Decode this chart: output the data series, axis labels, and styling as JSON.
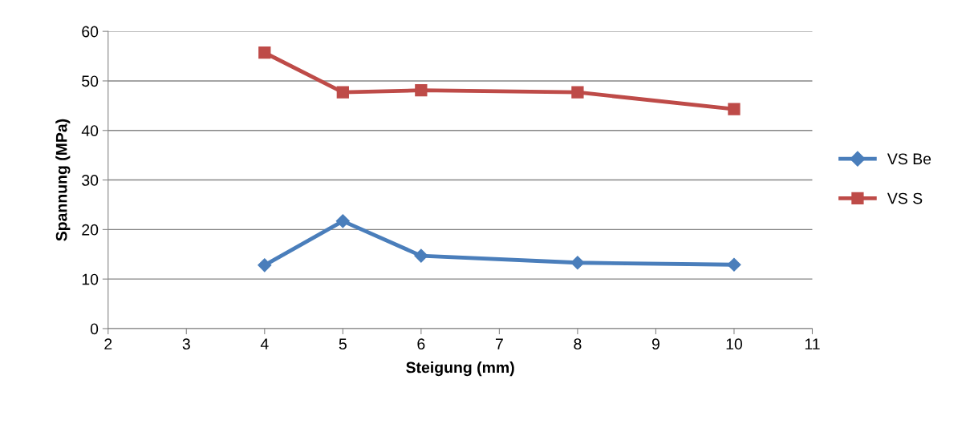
{
  "chart_data": {
    "type": "line",
    "xlabel": "Steigung (mm)",
    "ylabel": "Spannung (MPa)",
    "x": [
      4,
      5,
      6,
      8,
      10
    ],
    "series": [
      {
        "name": "VS Be",
        "color": "#4a7ebb",
        "marker": "diamond",
        "values": [
          12.8,
          21.7,
          14.7,
          13.3,
          12.9
        ]
      },
      {
        "name": "VS S",
        "color": "#be4b48",
        "marker": "square",
        "values": [
          55.7,
          47.7,
          48.1,
          47.7,
          44.3
        ]
      }
    ],
    "xlim": [
      2,
      11
    ],
    "xticks": [
      2,
      3,
      4,
      5,
      6,
      7,
      8,
      9,
      10,
      11
    ],
    "ylim": [
      0,
      60
    ],
    "yticks": [
      0,
      10,
      20,
      30,
      40,
      50,
      60
    ],
    "grid": "y",
    "legend": "right",
    "line_style": "solid"
  }
}
